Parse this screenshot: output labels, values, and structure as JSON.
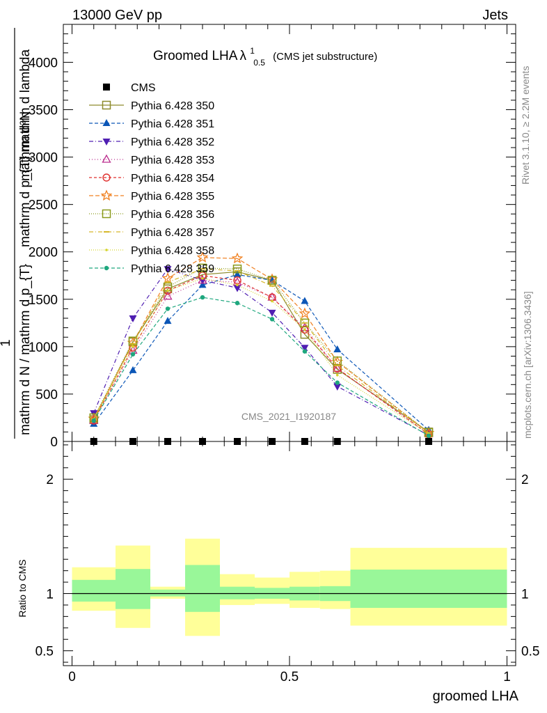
{
  "header": {
    "energy_label": "13000 GeV pp",
    "process_label": "Jets",
    "rivet_label": "Rivet 3.1.10, ≥ 2.2M events",
    "mcplots_label": "mcplots.cern.ch [arXiv:1306.3436]",
    "analysis_label": "CMS_2021_I1920187"
  },
  "chart_data": [
    {
      "type": "line",
      "title": "Groomed LHA",
      "title_lambda": "λ",
      "title_sup": "1",
      "title_sub": "0.5",
      "subtitle": "(CMS jet substructure)",
      "ylabel_numerator": "mathrm d²N",
      "ylabel_secondary": "mathrm d p_{T} mathrm d lambda",
      "ylabel_denominator": "mathrm d N / mathrm d p_{T}",
      "ylabel_prefix": "1",
      "ylim": [
        0,
        4400
      ],
      "xlim": [
        -0.02,
        1.02
      ],
      "y_ticks": [
        0,
        500,
        1000,
        1500,
        2000,
        2500,
        3000,
        3500,
        4000
      ],
      "y_tick_labels": [
        "0",
        "500",
        "1000",
        "1500",
        "2000",
        "2500",
        "3000",
        "3500",
        "4000"
      ],
      "x": [
        0.05,
        0.14,
        0.22,
        0.3,
        0.38,
        0.46,
        0.535,
        0.61,
        0.82
      ],
      "legend_position": "top-left",
      "series": [
        {
          "name": "CMS",
          "color": "#000000",
          "marker": "square-filled",
          "dash": "",
          "values": [
            0,
            0,
            0,
            0,
            0,
            0,
            0,
            0,
            0
          ]
        },
        {
          "name": "Pythia 6.428 350",
          "color": "#8d8b2c",
          "marker": "square-open",
          "dash": "",
          "values": [
            230,
            1050,
            1610,
            1760,
            1790,
            1700,
            1130,
            760,
            100
          ]
        },
        {
          "name": "Pythia 6.428 351",
          "color": "#0b56b7",
          "marker": "triangle-up-filled",
          "dash": "5,3",
          "values": [
            185,
            750,
            1270,
            1650,
            1760,
            1700,
            1480,
            970,
            120
          ]
        },
        {
          "name": "Pythia 6.428 352",
          "color": "#4f1eb2",
          "marker": "triangle-down-filled",
          "dash": "6,3,1,3",
          "values": [
            300,
            1300,
            1820,
            1700,
            1620,
            1360,
            990,
            580,
            65
          ]
        },
        {
          "name": "Pythia 6.428 353",
          "color": "#bb2c8d",
          "marker": "triangle-up-open",
          "dash": "1,3",
          "values": [
            220,
            960,
            1530,
            1700,
            1680,
            1520,
            1200,
            770,
            80
          ]
        },
        {
          "name": "Pythia 6.428 354",
          "color": "#e0312f",
          "marker": "circle-open",
          "dash": "4,3",
          "values": [
            220,
            990,
            1590,
            1750,
            1700,
            1520,
            1180,
            770,
            75
          ]
        },
        {
          "name": "Pythia 6.428 355",
          "color": "#f08020",
          "marker": "star-open",
          "dash": "6,3",
          "values": [
            240,
            1040,
            1720,
            1940,
            1930,
            1710,
            1350,
            840,
            90
          ]
        },
        {
          "name": "Pythia 6.428 356",
          "color": "#8a9a1a",
          "marker": "square-open",
          "dash": "1,2",
          "values": [
            250,
            1060,
            1630,
            1830,
            1820,
            1700,
            1250,
            850,
            95
          ]
        },
        {
          "name": "Pythia 6.428 357",
          "color": "#d6b72a",
          "marker": "dash-marker",
          "dash": "6,3,1,3",
          "values": [
            240,
            1030,
            1680,
            1820,
            1800,
            1640,
            1250,
            800,
            90
          ]
        },
        {
          "name": "Pythia 6.428 358",
          "color": "#d4d42a",
          "marker": "dot",
          "dash": "1,2",
          "values": [
            230,
            1000,
            1590,
            1720,
            1650,
            1480,
            1180,
            700,
            80
          ]
        },
        {
          "name": "Pythia 6.428 359",
          "color": "#1ea77e",
          "marker": "circle-filled-small",
          "dash": "5,3",
          "values": [
            220,
            920,
            1400,
            1520,
            1460,
            1290,
            950,
            620,
            60
          ]
        }
      ]
    },
    {
      "type": "area",
      "ylabel": "Ratio to CMS",
      "xlabel": "groomed LHA",
      "ylim": [
        0.37,
        2.33
      ],
      "xlim": [
        -0.02,
        1.02
      ],
      "y_ticks": [
        0.5,
        1,
        2
      ],
      "y_tick_labels": [
        "0.5",
        "1",
        "2"
      ],
      "x_ticks": [
        0,
        0.5,
        1
      ],
      "x_tick_labels": [
        "0",
        "0.5",
        "1"
      ],
      "reference_line": 1,
      "bins": [
        {
          "x0": 0.0,
          "x1": 0.1,
          "stat_lo": 0.93,
          "stat_hi": 1.12,
          "tot_lo": 0.85,
          "tot_hi": 1.23
        },
        {
          "x0": 0.1,
          "x1": 0.18,
          "stat_lo": 0.865,
          "stat_hi": 1.215,
          "tot_lo": 0.7,
          "tot_hi": 1.42
        },
        {
          "x0": 0.18,
          "x1": 0.26,
          "stat_lo": 0.975,
          "stat_hi": 1.035,
          "tot_lo": 0.955,
          "tot_hi": 1.06
        },
        {
          "x0": 0.26,
          "x1": 0.34,
          "stat_lo": 0.84,
          "stat_hi": 1.25,
          "tot_lo": 0.63,
          "tot_hi": 1.48
        },
        {
          "x0": 0.34,
          "x1": 0.42,
          "stat_lo": 0.95,
          "stat_hi": 1.06,
          "tot_lo": 0.9,
          "tot_hi": 1.17
        },
        {
          "x0": 0.42,
          "x1": 0.5,
          "stat_lo": 0.955,
          "stat_hi": 1.05,
          "tot_lo": 0.91,
          "tot_hi": 1.14
        },
        {
          "x0": 0.5,
          "x1": 0.57,
          "stat_lo": 0.94,
          "stat_hi": 1.06,
          "tot_lo": 0.875,
          "tot_hi": 1.19
        },
        {
          "x0": 0.57,
          "x1": 0.64,
          "stat_lo": 0.935,
          "stat_hi": 1.065,
          "tot_lo": 0.865,
          "tot_hi": 1.2
        },
        {
          "x0": 0.64,
          "x1": 1.0,
          "stat_lo": 0.875,
          "stat_hi": 1.21,
          "tot_lo": 0.72,
          "tot_hi": 1.4
        }
      ]
    }
  ],
  "colors": {
    "stat_band": "#99f799",
    "total_band": "#ffff99",
    "watermark": "#888888"
  }
}
